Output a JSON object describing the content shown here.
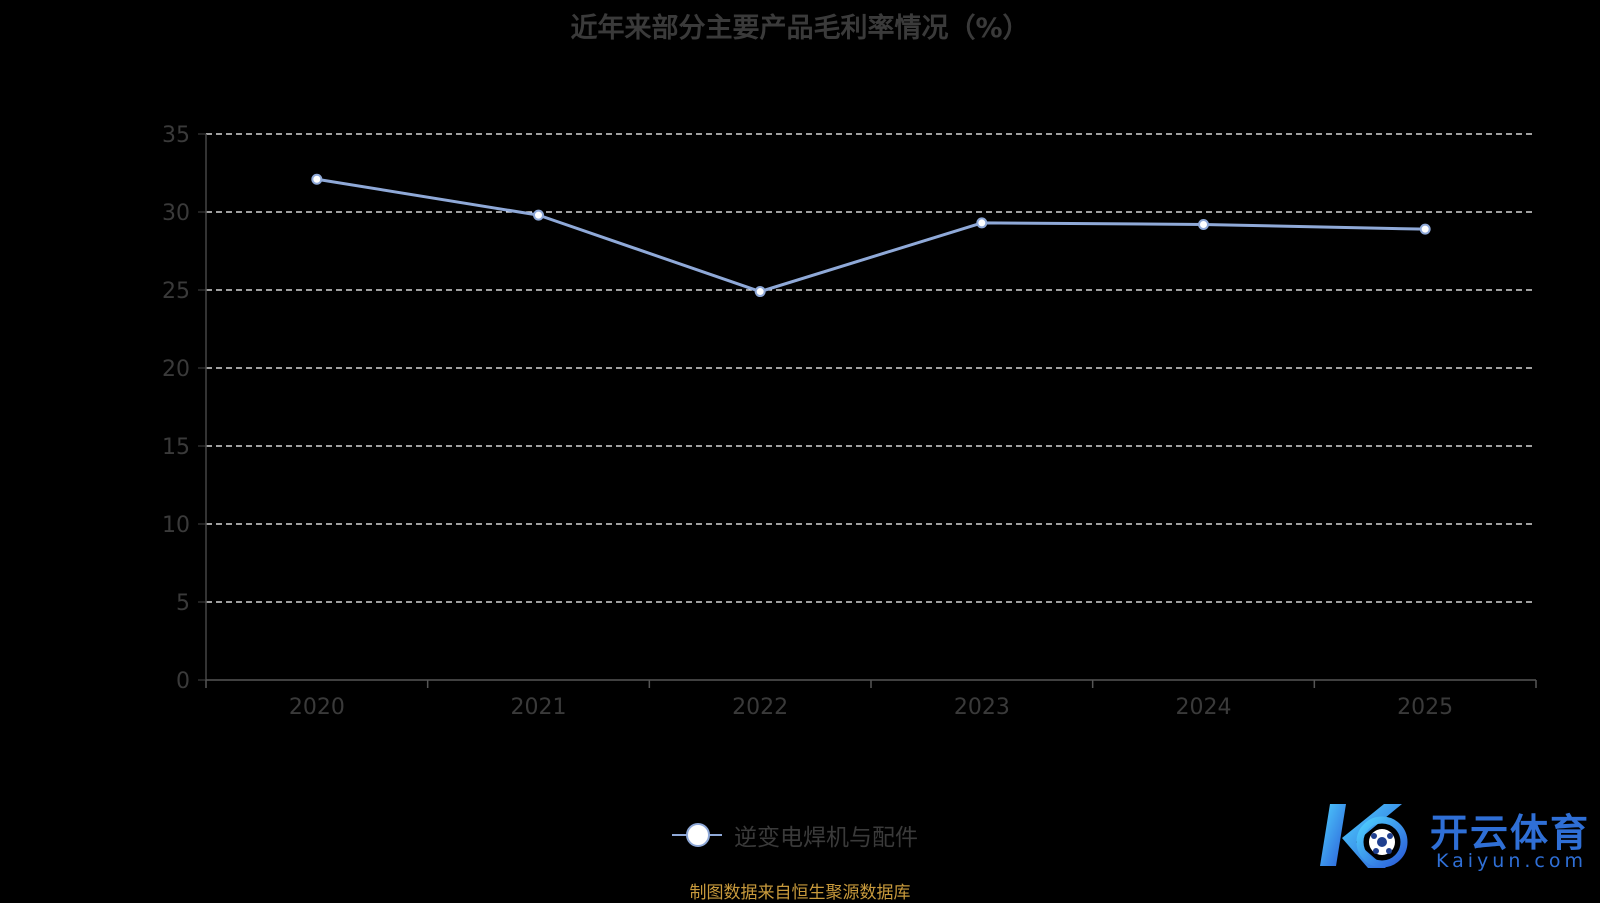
{
  "chart_data": {
    "type": "line",
    "title": "近年来部分主要产品毛利率情况（%）",
    "categories": [
      "2020",
      "2021",
      "2022",
      "2023",
      "2024",
      "2025"
    ],
    "series": [
      {
        "name": "逆变电焊机与配件",
        "values": [
          32.1,
          29.8,
          24.9,
          29.3,
          29.2,
          28.9
        ],
        "color": "#8fa9d8"
      }
    ],
    "y_ticks": [
      "0",
      "5",
      "10",
      "15",
      "20",
      "25",
      "30",
      "35"
    ],
    "ylim": [
      0,
      35
    ],
    "grid": true,
    "grid_style": "dashed",
    "legend_position": "bottom-center"
  },
  "source_note": "制图数据来自恒生聚源数据库",
  "watermark": {
    "text_cn": "开云体育",
    "text_en": "Kaiyun.com",
    "color": "#2f6fd6"
  }
}
